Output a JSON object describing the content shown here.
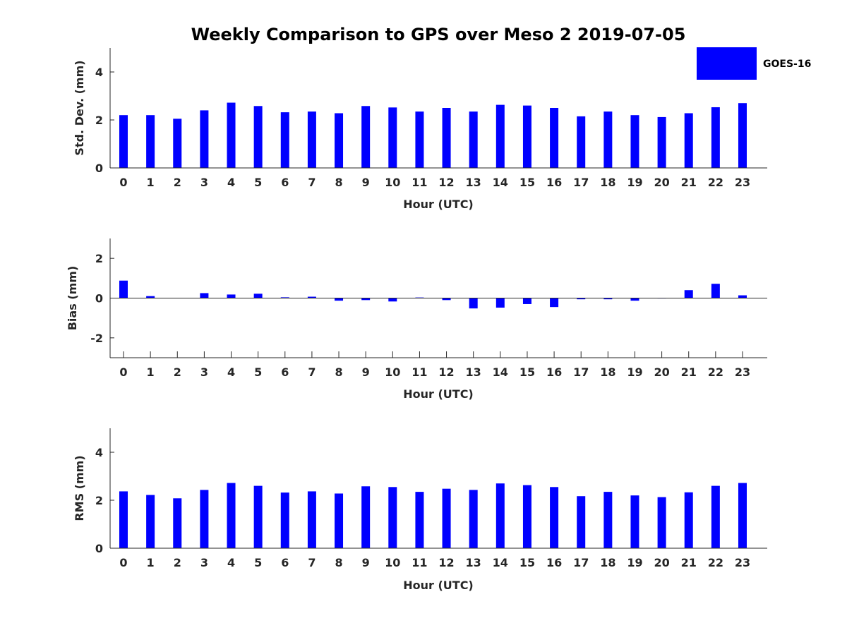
{
  "title": "Weekly Comparison to GPS over Meso 2 2019-07-05",
  "legend": {
    "label": "GOES-16",
    "color": "#0000ff"
  },
  "chart_data": [
    {
      "type": "bar",
      "name": "std-dev",
      "ylabel": "Std. Dev. (mm)",
      "xlabel": "Hour (UTC)",
      "ylim": [
        0,
        5
      ],
      "yticks": [
        0,
        2,
        4
      ],
      "xtick_marks": false,
      "categories": [
        "0",
        "1",
        "2",
        "3",
        "4",
        "5",
        "6",
        "7",
        "8",
        "9",
        "10",
        "11",
        "12",
        "13",
        "14",
        "15",
        "16",
        "17",
        "18",
        "19",
        "20",
        "21",
        "22",
        "23"
      ],
      "series": [
        {
          "name": "GOES-16",
          "values": [
            2.2,
            2.2,
            2.05,
            2.4,
            2.72,
            2.58,
            2.32,
            2.35,
            2.28,
            2.58,
            2.52,
            2.35,
            2.5,
            2.35,
            2.63,
            2.6,
            2.5,
            2.15,
            2.35,
            2.2,
            2.12,
            2.28,
            2.53,
            2.7
          ]
        }
      ]
    },
    {
      "type": "bar",
      "name": "bias",
      "ylabel": "Bias (mm)",
      "xlabel": "Hour (UTC)",
      "ylim": [
        -3,
        3
      ],
      "yticks": [
        -2,
        0,
        2
      ],
      "xtick_marks": true,
      "categories": [
        "0",
        "1",
        "2",
        "3",
        "4",
        "5",
        "6",
        "7",
        "8",
        "9",
        "10",
        "11",
        "12",
        "13",
        "14",
        "15",
        "16",
        "17",
        "18",
        "19",
        "20",
        "21",
        "22",
        "23"
      ],
      "series": [
        {
          "name": "GOES-16",
          "values": [
            0.88,
            0.1,
            0.0,
            0.25,
            0.18,
            0.22,
            0.04,
            0.07,
            -0.13,
            -0.1,
            -0.17,
            0.03,
            -0.1,
            -0.52,
            -0.48,
            -0.3,
            -0.45,
            -0.06,
            -0.06,
            -0.13,
            -0.02,
            0.4,
            0.72,
            0.14
          ]
        }
      ]
    },
    {
      "type": "bar",
      "name": "rms",
      "ylabel": "RMS (mm)",
      "xlabel": "Hour (UTC)",
      "ylim": [
        0,
        5
      ],
      "yticks": [
        0,
        2,
        4
      ],
      "xtick_marks": false,
      "categories": [
        "0",
        "1",
        "2",
        "3",
        "4",
        "5",
        "6",
        "7",
        "8",
        "9",
        "10",
        "11",
        "12",
        "13",
        "14",
        "15",
        "16",
        "17",
        "18",
        "19",
        "20",
        "21",
        "22",
        "23"
      ],
      "series": [
        {
          "name": "GOES-16",
          "values": [
            2.37,
            2.22,
            2.08,
            2.43,
            2.72,
            2.6,
            2.32,
            2.37,
            2.28,
            2.58,
            2.55,
            2.35,
            2.48,
            2.43,
            2.7,
            2.63,
            2.55,
            2.17,
            2.35,
            2.2,
            2.13,
            2.33,
            2.6,
            2.72
          ]
        }
      ]
    }
  ]
}
